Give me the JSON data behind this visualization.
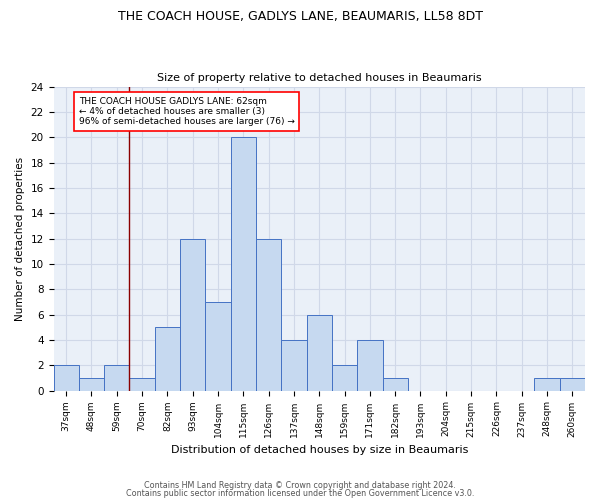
{
  "title1": "THE COACH HOUSE, GADLYS LANE, BEAUMARIS, LL58 8DT",
  "title2": "Size of property relative to detached houses in Beaumaris",
  "xlabel": "Distribution of detached houses by size in Beaumaris",
  "ylabel": "Number of detached properties",
  "footnote1": "Contains HM Land Registry data © Crown copyright and database right 2024.",
  "footnote2": "Contains public sector information licensed under the Open Government Licence v3.0.",
  "bin_labels": [
    "37sqm",
    "48sqm",
    "59sqm",
    "70sqm",
    "82sqm",
    "93sqm",
    "104sqm",
    "115sqm",
    "126sqm",
    "137sqm",
    "148sqm",
    "159sqm",
    "171sqm",
    "182sqm",
    "193sqm",
    "204sqm",
    "215sqm",
    "226sqm",
    "237sqm",
    "248sqm",
    "260sqm"
  ],
  "bar_heights": [
    2,
    1,
    2,
    1,
    5,
    12,
    7,
    20,
    12,
    4,
    6,
    2,
    4,
    1,
    0,
    0,
    0,
    0,
    0,
    1,
    1
  ],
  "bar_color": "#c6d9f0",
  "bar_edge_color": "#4472c4",
  "ylim": [
    0,
    24
  ],
  "yticks": [
    0,
    2,
    4,
    6,
    8,
    10,
    12,
    14,
    16,
    18,
    20,
    22,
    24
  ],
  "red_line_x": 2.5,
  "annotation_line1": "THE COACH HOUSE GADLYS LANE: 62sqm",
  "annotation_line2": "← 4% of detached houses are smaller (3)",
  "annotation_line3": "96% of semi-detached houses are larger (76) →",
  "grid_color": "#d0d8e8",
  "background_color": "#eaf0f8",
  "fig_bg_color": "#ffffff"
}
